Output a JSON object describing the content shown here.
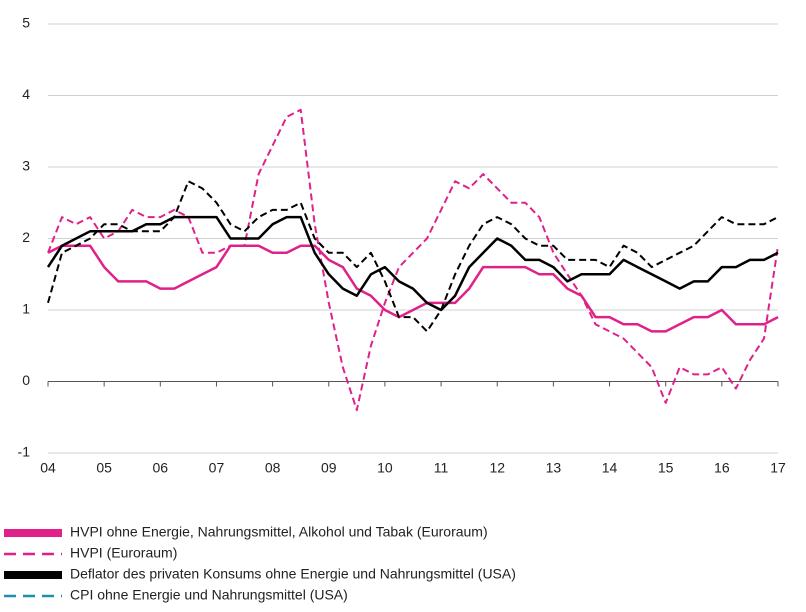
{
  "chart_data": {
    "type": "line",
    "x": [
      2004,
      2004.25,
      2004.5,
      2004.75,
      2005,
      2005.25,
      2005.5,
      2005.75,
      2006,
      2006.25,
      2006.5,
      2006.75,
      2007,
      2007.25,
      2007.5,
      2007.75,
      2008,
      2008.25,
      2008.5,
      2008.75,
      2009,
      2009.25,
      2009.5,
      2009.75,
      2010,
      2010.25,
      2010.5,
      2010.75,
      2011,
      2011.25,
      2011.5,
      2011.75,
      2012,
      2012.25,
      2012.5,
      2012.75,
      2013,
      2013.25,
      2013.5,
      2013.75,
      2014,
      2014.25,
      2014.5,
      2014.75,
      2015,
      2015.25,
      2015.5,
      2015.75,
      2016,
      2016.25,
      2016.5,
      2016.75,
      2017
    ],
    "series": [
      {
        "name": "HVPI ohne Energie, Nahrungsmittel, Alkohol und Tabak (Euroraum)",
        "color": "#e0218a",
        "dash": false,
        "width": 2.5,
        "values": [
          1.8,
          1.9,
          1.9,
          1.9,
          1.6,
          1.4,
          1.4,
          1.4,
          1.3,
          1.3,
          1.4,
          1.5,
          1.6,
          1.9,
          1.9,
          1.9,
          1.8,
          1.8,
          1.9,
          1.9,
          1.7,
          1.6,
          1.3,
          1.2,
          1.0,
          0.9,
          1.0,
          1.1,
          1.1,
          1.1,
          1.3,
          1.6,
          1.6,
          1.6,
          1.6,
          1.5,
          1.5,
          1.3,
          1.2,
          0.9,
          0.9,
          0.8,
          0.8,
          0.7,
          0.7,
          0.8,
          0.9,
          0.9,
          1.0,
          0.8,
          0.8,
          0.8,
          0.9
        ]
      },
      {
        "name": "HVPI (Euroraum)",
        "color": "#e0218a",
        "dash": true,
        "width": 2,
        "values": [
          1.8,
          2.3,
          2.2,
          2.3,
          2.0,
          2.1,
          2.4,
          2.3,
          2.3,
          2.4,
          2.3,
          1.8,
          1.8,
          1.9,
          1.9,
          2.9,
          3.3,
          3.7,
          3.8,
          2.2,
          1.1,
          0.2,
          -0.4,
          0.5,
          1.1,
          1.6,
          1.8,
          2.0,
          2.4,
          2.8,
          2.7,
          2.9,
          2.7,
          2.5,
          2.5,
          2.3,
          1.8,
          1.5,
          1.2,
          0.8,
          0.7,
          0.6,
          0.4,
          0.2,
          -0.3,
          0.2,
          0.1,
          0.1,
          0.2,
          -0.1,
          0.3,
          0.6,
          1.9
        ]
      },
      {
        "name": "Deflator des privaten Konsums ohne Energie und Nahrungsmittel (USA)",
        "color": "#000000",
        "dash": false,
        "width": 2.5,
        "values": [
          1.6,
          1.9,
          2.0,
          2.1,
          2.1,
          2.1,
          2.1,
          2.2,
          2.2,
          2.3,
          2.3,
          2.3,
          2.3,
          2.0,
          2.0,
          2.0,
          2.2,
          2.3,
          2.3,
          1.8,
          1.5,
          1.3,
          1.2,
          1.5,
          1.6,
          1.4,
          1.3,
          1.1,
          1.0,
          1.2,
          1.6,
          1.8,
          2.0,
          1.9,
          1.7,
          1.7,
          1.6,
          1.4,
          1.5,
          1.5,
          1.5,
          1.7,
          1.6,
          1.5,
          1.4,
          1.3,
          1.4,
          1.4,
          1.6,
          1.6,
          1.7,
          1.7,
          1.8
        ]
      },
      {
        "name": "CPI ohne Energie und Nahrungsmittel (USA)",
        "color": "#000000",
        "legend_color": "#1f8fb0",
        "dash": true,
        "width": 2,
        "values": [
          1.1,
          1.8,
          1.9,
          2.0,
          2.2,
          2.2,
          2.1,
          2.1,
          2.1,
          2.3,
          2.8,
          2.7,
          2.5,
          2.2,
          2.1,
          2.3,
          2.4,
          2.4,
          2.5,
          2.0,
          1.8,
          1.8,
          1.6,
          1.8,
          1.4,
          0.9,
          0.9,
          0.7,
          1.0,
          1.5,
          1.9,
          2.2,
          2.3,
          2.2,
          2.0,
          1.9,
          1.9,
          1.7,
          1.7,
          1.7,
          1.6,
          1.9,
          1.8,
          1.6,
          1.7,
          1.8,
          1.9,
          2.1,
          2.3,
          2.2,
          2.2,
          2.2,
          2.3
        ]
      }
    ],
    "xlim": [
      2004,
      2017
    ],
    "xticks": [
      {
        "value": 2004,
        "label": "04"
      },
      {
        "value": 2005,
        "label": "05"
      },
      {
        "value": 2006,
        "label": "06"
      },
      {
        "value": 2007,
        "label": "07"
      },
      {
        "value": 2008,
        "label": "08"
      },
      {
        "value": 2009,
        "label": "09"
      },
      {
        "value": 2010,
        "label": "10"
      },
      {
        "value": 2011,
        "label": "11"
      },
      {
        "value": 2012,
        "label": "12"
      },
      {
        "value": 2013,
        "label": "13"
      },
      {
        "value": 2014,
        "label": "14"
      },
      {
        "value": 2015,
        "label": "15"
      },
      {
        "value": 2016,
        "label": "16"
      },
      {
        "value": 2017,
        "label": "17"
      }
    ],
    "ylim": [
      -1,
      5
    ],
    "yticks": [
      -1,
      0,
      1,
      2,
      3,
      4,
      5
    ],
    "grid": true,
    "legend": "bottom"
  }
}
